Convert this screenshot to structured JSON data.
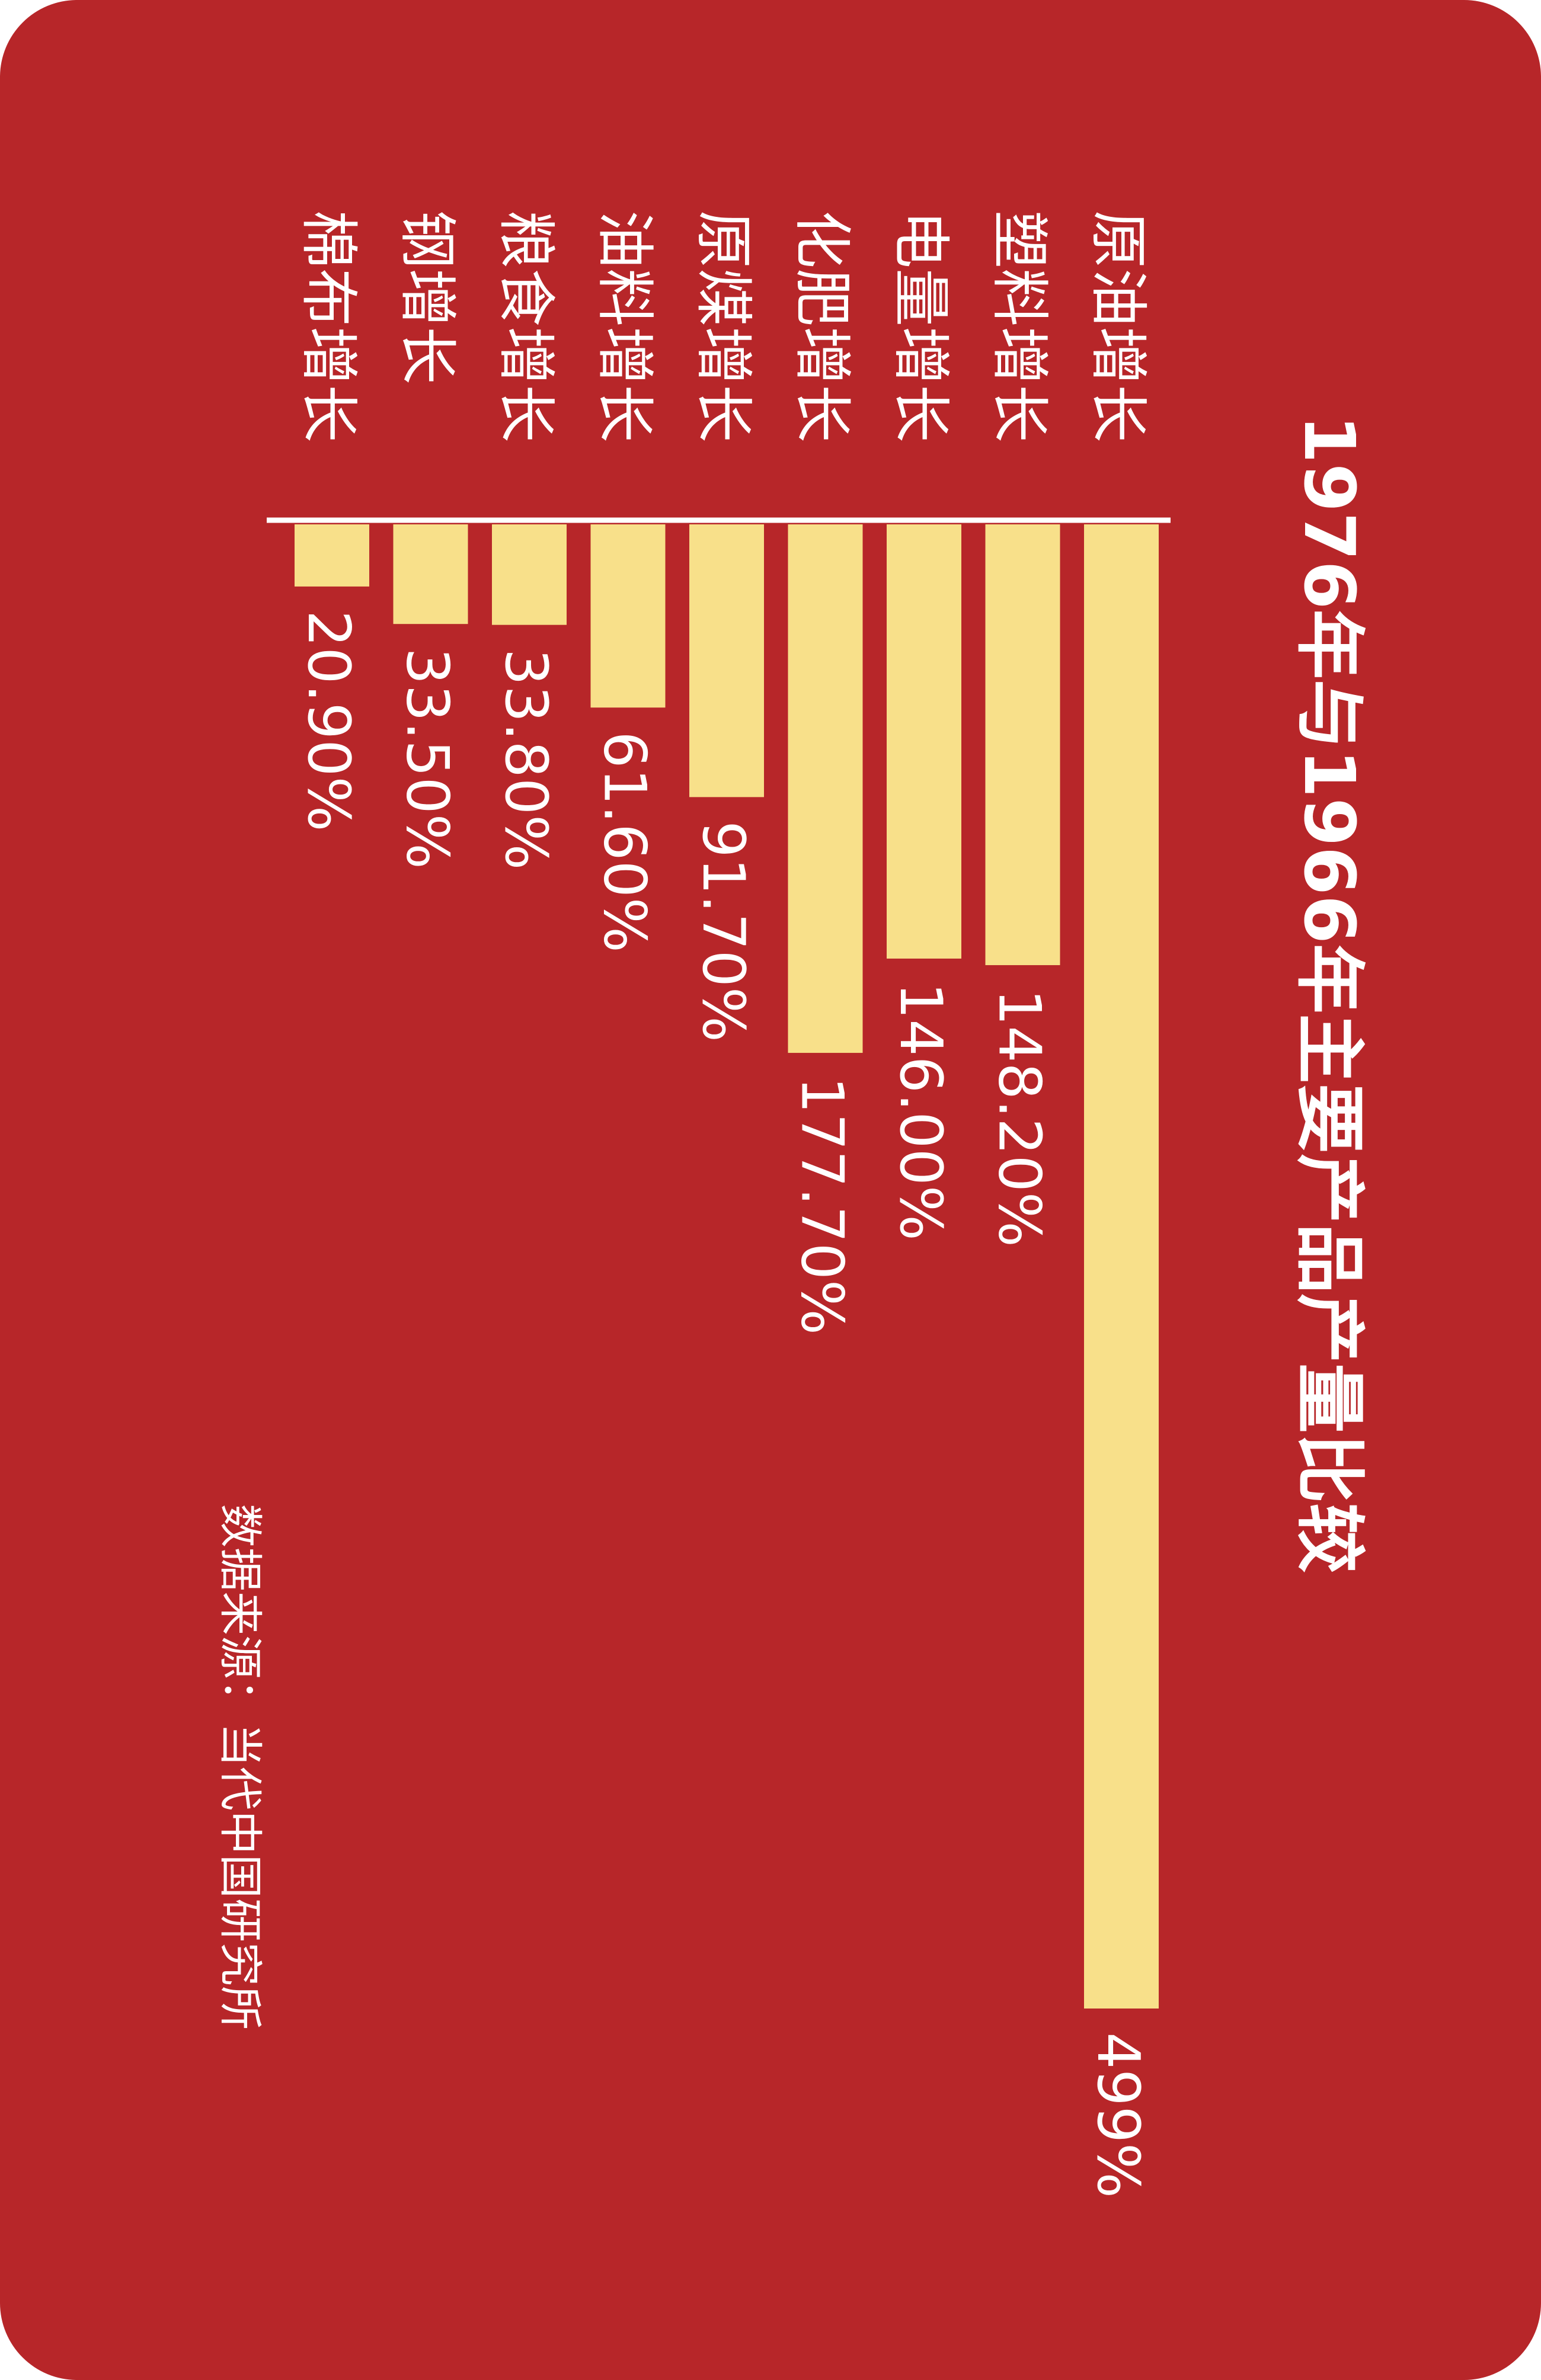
{
  "colors": {
    "background": "#b72629",
    "bar": "#f8e08a",
    "text": "#ffffff"
  },
  "chart_data": {
    "type": "bar",
    "orientation": "vertical-text (rotated 90°)",
    "title": "1976年与1966年主要产品产量比较",
    "source": "数据来源：当代中国研究所",
    "categories": [
      "原油增长",
      "塑料增长",
      "电量增长",
      "化肥增长",
      "原煤增长",
      "油料增长",
      "粮食增长",
      "钢增长",
      "棉布增长"
    ],
    "values": [
      499,
      148.2,
      146.0,
      177.7,
      91.7,
      61.6,
      33.8,
      33.5,
      20.9
    ],
    "value_labels": [
      "499%",
      "148.20%",
      "146.00%",
      "177.70%",
      "91.70%",
      "61.60%",
      "33.80%",
      "33.50%",
      "20.90%"
    ],
    "unit": "%"
  }
}
